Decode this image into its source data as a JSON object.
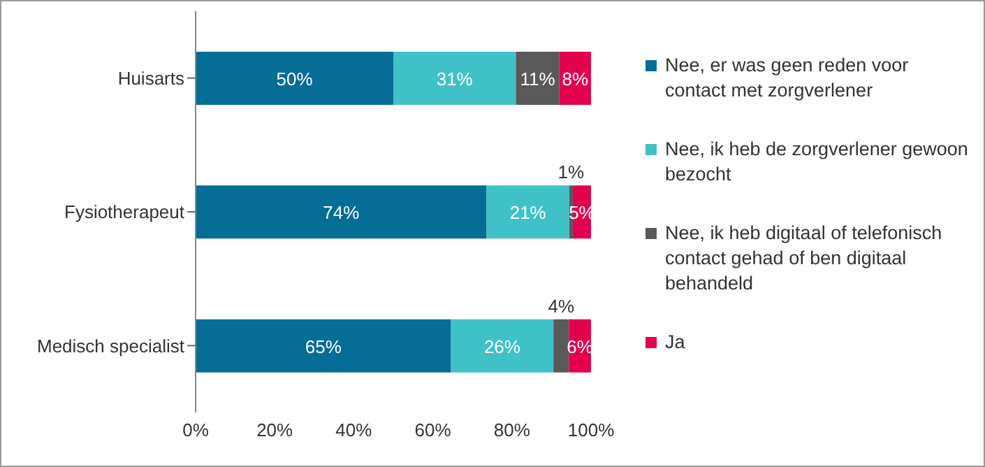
{
  "chart_data": {
    "type": "bar",
    "orientation": "horizontal",
    "stacked": true,
    "categories": [
      "Huisarts",
      "Fysiotherapeut",
      "Medisch specialist"
    ],
    "series": [
      {
        "name": "Nee, er was geen reden voor contact met zorgverlener",
        "color": "#056d96",
        "values": [
          50,
          73.6,
          64.6
        ],
        "value_labels": [
          "50%",
          "74%",
          "65%"
        ]
      },
      {
        "name": "Nee, ik heb de zorgverlener gewoon bezocht",
        "color": "#40c1c8",
        "values": [
          31,
          20.9,
          25.9
        ],
        "value_labels": [
          "31%",
          "21%",
          "26%"
        ]
      },
      {
        "name": "Nee, ik heb digitaal of telefonisch contact gehad of ben digitaal behandeld",
        "color": "#595959",
        "values": [
          11,
          0.9,
          3.9
        ],
        "value_labels": [
          "11%",
          "1%",
          "4%"
        ]
      },
      {
        "name": "Ja",
        "color": "#e2004f",
        "values": [
          8,
          4.6,
          5.6
        ],
        "value_labels": [
          "8%",
          "5%",
          "6%"
        ]
      }
    ],
    "xlim": [
      0,
      100
    ],
    "xticks": [
      {
        "value": 0,
        "label": "0%"
      },
      {
        "value": 20,
        "label": "20%"
      },
      {
        "value": 40,
        "label": "40%"
      },
      {
        "value": 60,
        "label": "60%"
      },
      {
        "value": 80,
        "label": "80%"
      },
      {
        "value": 100,
        "label": "100%"
      }
    ],
    "legend": "right"
  }
}
